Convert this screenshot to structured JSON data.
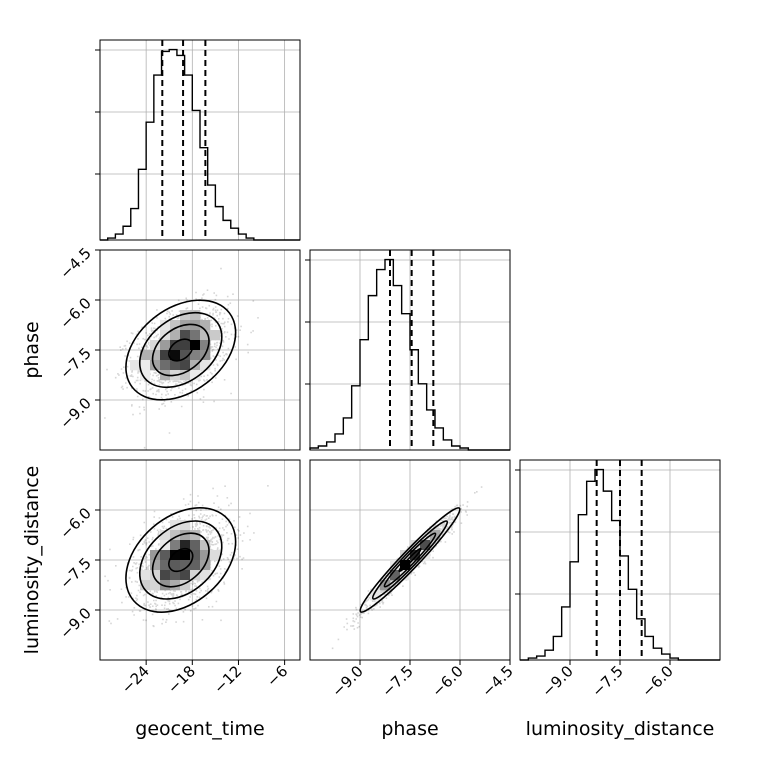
{
  "chart_data": {
    "type": "corner",
    "parameters": [
      {
        "name": "geocent_time",
        "label": "geocent_time",
        "range": [
          -30,
          -4
        ],
        "ticks": [
          "-24",
          "-18",
          "-12",
          "-6"
        ],
        "tick_values": [
          -24,
          -18,
          -12,
          -6
        ],
        "median": -19.2,
        "q16": -21.9,
        "q84": -16.3
      },
      {
        "name": "phase",
        "label": "phase",
        "range": [
          -10.5,
          -4.5
        ],
        "ticks": [
          "-9.0",
          "-7.5",
          "-6.0",
          "-4.5"
        ],
        "tick_values": [
          -9.0,
          -7.5,
          -6.0,
          -4.5
        ],
        "median": -7.45,
        "q16": -8.1,
        "q84": -6.8
      },
      {
        "name": "luminosity_distance",
        "label": "luminosity_distance",
        "range": [
          -10.5,
          -4.5
        ],
        "ticks": [
          "-9.0",
          "-7.5",
          "-6.0"
        ],
        "tick_values": [
          -9.0,
          -7.5,
          -6.0
        ],
        "median": -7.5,
        "q16": -8.2,
        "q84": -6.85
      }
    ],
    "histograms": {
      "geocent_time": {
        "bin_edges": [
          -30,
          -29,
          -28,
          -27,
          -26,
          -25,
          -24,
          -23,
          -22,
          -21,
          -20,
          -19,
          -18,
          -17,
          -16,
          -15,
          -14,
          -13,
          -12,
          -11,
          -10,
          -9,
          -8,
          -7,
          -6,
          -5,
          -4
        ],
        "counts": [
          0,
          1,
          3,
          7,
          16,
          36,
          60,
          84,
          96,
          97,
          94,
          84,
          66,
          47,
          28,
          17,
          10,
          6,
          3,
          1,
          0,
          0,
          0,
          0,
          0,
          0
        ]
      },
      "phase": {
        "bin_edges": [
          -10.5,
          -10.25,
          -10.0,
          -9.75,
          -9.5,
          -9.25,
          -9.0,
          -8.75,
          -8.5,
          -8.25,
          -8.0,
          -7.75,
          -7.5,
          -7.25,
          -7.0,
          -6.75,
          -6.5,
          -6.25,
          -6.0,
          -5.75,
          -5.5,
          -5.25,
          -5.0,
          -4.75,
          -4.5
        ],
        "counts": [
          1,
          2,
          4,
          8,
          16,
          32,
          55,
          77,
          90,
          95,
          82,
          68,
          50,
          33,
          20,
          11,
          5,
          2,
          1,
          0,
          0,
          0,
          0,
          0
        ]
      },
      "luminosity_distance": {
        "bin_edges": [
          -10.5,
          -10.25,
          -10.0,
          -9.75,
          -9.5,
          -9.25,
          -9.0,
          -8.75,
          -8.5,
          -8.25,
          -8.0,
          -7.75,
          -7.5,
          -7.25,
          -7.0,
          -6.75,
          -6.5,
          -6.25,
          -6.0,
          -5.75,
          -5.5,
          -5.25,
          -5.0,
          -4.75,
          -4.5
        ],
        "counts": [
          0,
          1,
          2,
          5,
          12,
          27,
          50,
          74,
          91,
          97,
          86,
          71,
          53,
          36,
          21,
          12,
          6,
          3,
          1,
          0,
          0,
          0,
          0,
          0
        ]
      }
    },
    "pairs": [
      {
        "x": "geocent_time",
        "y": "phase",
        "center": [
          -19.5,
          -7.5
        ],
        "sigma": [
          3.1,
          0.65
        ],
        "rho": 0.35
      },
      {
        "x": "geocent_time",
        "y": "luminosity_distance",
        "center": [
          -19.5,
          -7.5
        ],
        "sigma": [
          3.1,
          0.68
        ],
        "rho": 0.35
      },
      {
        "x": "phase",
        "y": "luminosity_distance",
        "center": [
          -7.5,
          -7.5
        ],
        "sigma": [
          0.65,
          0.68
        ],
        "rho": 0.97
      }
    ],
    "grid": true
  }
}
